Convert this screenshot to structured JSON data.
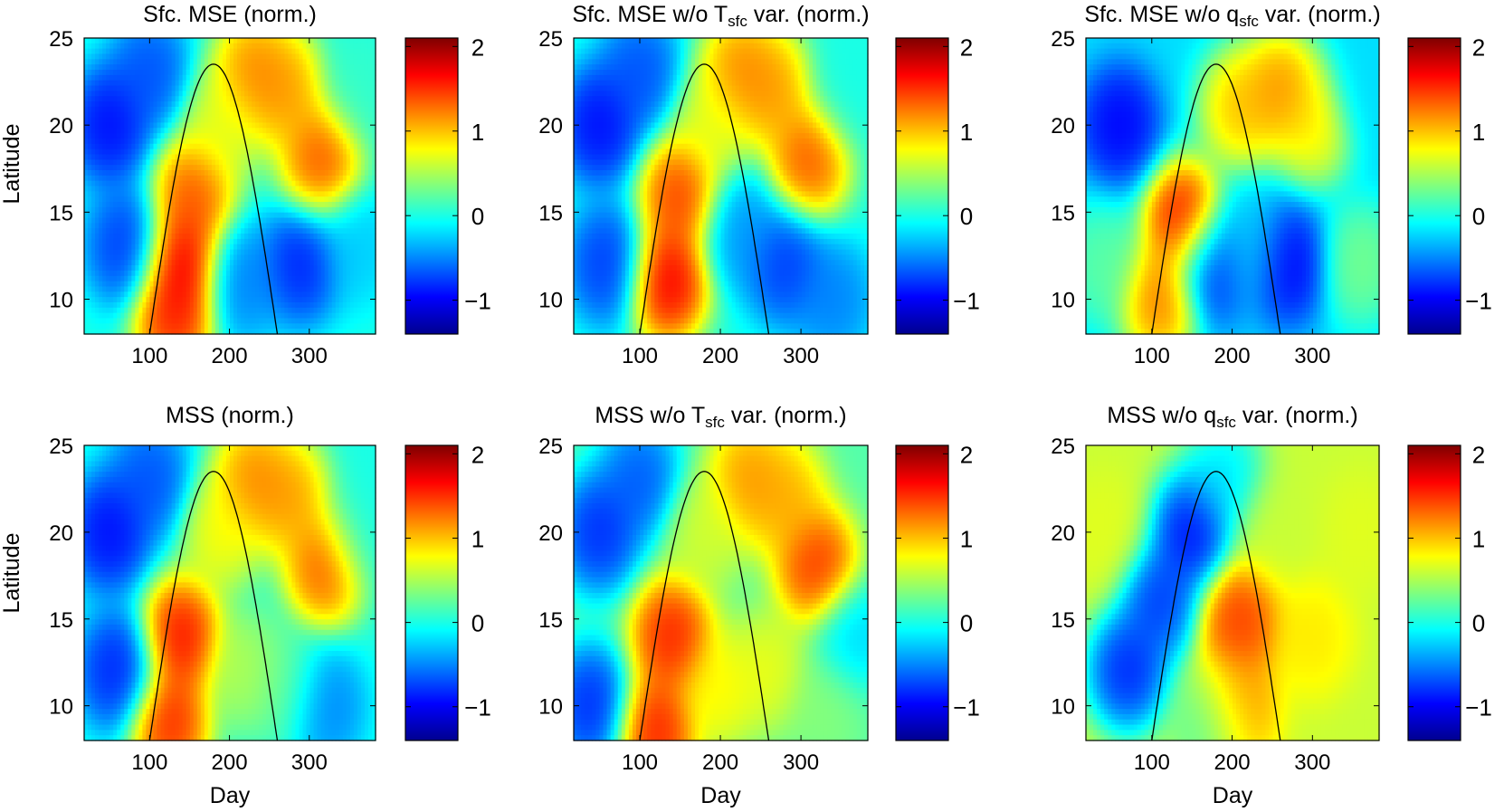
{
  "figure": {
    "y_axis_label": "Latitude",
    "x_axis_label": "Day"
  },
  "chart_data": [
    {
      "type": "heatmap",
      "title": "Sfc. MSE (norm.)",
      "title_parts": [
        "Sfc. MSE (norm.)"
      ],
      "xlabel": "",
      "ylabel": "Latitude",
      "x_ticks": [
        "100",
        "200",
        "300"
      ],
      "y_ticks": [
        "10",
        "15",
        "20",
        "25"
      ],
      "xlim": [
        18,
        383
      ],
      "ylim": [
        8,
        25
      ],
      "colorbar": {
        "ticks": [
          "2",
          "1",
          "0",
          "−1"
        ],
        "range": [
          -1.4,
          2.1
        ],
        "colormap": "jet"
      },
      "background_value": 0.0,
      "features": [
        {
          "day": 50,
          "lat": 20,
          "value": -1.1
        },
        {
          "day": 70,
          "lat": 13,
          "value": -0.9
        },
        {
          "day": 100,
          "lat": 23,
          "value": -0.8
        },
        {
          "day": 140,
          "lat": 12,
          "value": 2.0
        },
        {
          "day": 130,
          "lat": 9,
          "value": 1.8
        },
        {
          "day": 155,
          "lat": 16,
          "value": 1.6
        },
        {
          "day": 190,
          "lat": 20,
          "value": 0.8
        },
        {
          "day": 230,
          "lat": 23,
          "value": 1.4
        },
        {
          "day": 270,
          "lat": 22,
          "value": 1.3
        },
        {
          "day": 315,
          "lat": 18,
          "value": 1.6
        },
        {
          "day": 215,
          "lat": 11,
          "value": -0.6
        },
        {
          "day": 290,
          "lat": 12,
          "value": -1.0
        },
        {
          "day": 360,
          "lat": 13,
          "value": -0.3
        },
        {
          "day": 365,
          "lat": 22,
          "value": 0.1
        }
      ],
      "curve": {
        "start_day": 100,
        "end_day": 260,
        "peak_day": 180,
        "peak_lat": 23.5,
        "base_lat": 8
      }
    },
    {
      "type": "heatmap",
      "title": "Sfc. MSE w/o Tsfc var. (norm.)",
      "title_parts": [
        "Sfc. MSE w/o T",
        "sfc",
        " var. (norm.)"
      ],
      "xlabel": "",
      "ylabel": "",
      "x_ticks": [
        "100",
        "200",
        "300"
      ],
      "y_ticks": [
        "10",
        "15",
        "20",
        "25"
      ],
      "xlim": [
        18,
        383
      ],
      "ylim": [
        8,
        25
      ],
      "colorbar": {
        "ticks": [
          "2",
          "1",
          "0",
          "−1"
        ],
        "range": [
          -1.4,
          2.1
        ],
        "colormap": "jet"
      },
      "background_value": 0.0,
      "features": [
        {
          "day": 50,
          "lat": 20,
          "value": -1.1
        },
        {
          "day": 60,
          "lat": 12,
          "value": -0.9
        },
        {
          "day": 100,
          "lat": 23,
          "value": -0.8
        },
        {
          "day": 135,
          "lat": 11,
          "value": 2.0
        },
        {
          "day": 150,
          "lat": 16,
          "value": 1.7
        },
        {
          "day": 190,
          "lat": 20,
          "value": 0.8
        },
        {
          "day": 225,
          "lat": 23,
          "value": 1.4
        },
        {
          "day": 265,
          "lat": 22,
          "value": 1.3
        },
        {
          "day": 310,
          "lat": 18,
          "value": 1.6
        },
        {
          "day": 225,
          "lat": 14,
          "value": -0.5
        },
        {
          "day": 280,
          "lat": 12,
          "value": -0.9
        },
        {
          "day": 340,
          "lat": 10,
          "value": -0.6
        },
        {
          "day": 360,
          "lat": 22,
          "value": 0.0
        }
      ],
      "curve": {
        "start_day": 100,
        "end_day": 260,
        "peak_day": 180,
        "peak_lat": 23.5,
        "base_lat": 8
      }
    },
    {
      "type": "heatmap",
      "title": "Sfc. MSE w/o qsfc var. (norm.)",
      "title_parts": [
        "Sfc. MSE w/o q",
        "sfc",
        " var. (norm.)"
      ],
      "xlabel": "",
      "ylabel": "",
      "x_ticks": [
        "100",
        "200",
        "300"
      ],
      "y_ticks": [
        "10",
        "15",
        "20",
        "25"
      ],
      "xlim": [
        18,
        383
      ],
      "ylim": [
        8,
        25
      ],
      "colorbar": {
        "ticks": [
          "2",
          "1",
          "0",
          "−1"
        ],
        "range": [
          -1.4,
          2.1
        ],
        "colormap": "jet"
      },
      "background_value": -0.2,
      "features": [
        {
          "day": 60,
          "lat": 20,
          "value": -1.1
        },
        {
          "day": 40,
          "lat": 12,
          "value": 0.3
        },
        {
          "day": 110,
          "lat": 10,
          "value": 1.5
        },
        {
          "day": 140,
          "lat": 14.5,
          "value": 2.0
        },
        {
          "day": 175,
          "lat": 12,
          "value": -1.0
        },
        {
          "day": 210,
          "lat": 21,
          "value": 1.2
        },
        {
          "day": 260,
          "lat": 22,
          "value": 1.4
        },
        {
          "day": 300,
          "lat": 20,
          "value": 1.0
        },
        {
          "day": 270,
          "lat": 12,
          "value": -1.1
        },
        {
          "day": 220,
          "lat": 13,
          "value": -0.2
        },
        {
          "day": 360,
          "lat": 12,
          "value": 0.4
        },
        {
          "day": 370,
          "lat": 22,
          "value": -0.2
        }
      ],
      "curve": {
        "start_day": 100,
        "end_day": 260,
        "peak_day": 180,
        "peak_lat": 23.5,
        "base_lat": 8
      }
    },
    {
      "type": "heatmap",
      "title": "MSS (norm.)",
      "title_parts": [
        "MSS (norm.)"
      ],
      "xlabel": "Day",
      "ylabel": "Latitude",
      "x_ticks": [
        "100",
        "200",
        "300"
      ],
      "y_ticks": [
        "10",
        "15",
        "20",
        "25"
      ],
      "xlim": [
        18,
        383
      ],
      "ylim": [
        8,
        25
      ],
      "colorbar": {
        "ticks": [
          "2",
          "1",
          "0",
          "−1"
        ],
        "range": [
          -1.4,
          2.1
        ],
        "colormap": "jet"
      },
      "background_value": 0.0,
      "features": [
        {
          "day": 50,
          "lat": 20,
          "value": -1.1
        },
        {
          "day": 60,
          "lat": 12,
          "value": -1.0
        },
        {
          "day": 100,
          "lat": 23,
          "value": -0.8
        },
        {
          "day": 140,
          "lat": 14,
          "value": 1.9
        },
        {
          "day": 125,
          "lat": 9,
          "value": 1.8
        },
        {
          "day": 190,
          "lat": 20,
          "value": 0.9
        },
        {
          "day": 230,
          "lat": 23,
          "value": 1.4
        },
        {
          "day": 275,
          "lat": 22,
          "value": 1.3
        },
        {
          "day": 320,
          "lat": 18,
          "value": 1.6
        },
        {
          "day": 220,
          "lat": 12,
          "value": 0.6
        },
        {
          "day": 270,
          "lat": 11,
          "value": 0.3
        },
        {
          "day": 320,
          "lat": 10,
          "value": -0.6
        },
        {
          "day": 365,
          "lat": 20,
          "value": 0.0
        }
      ],
      "curve": {
        "start_day": 100,
        "end_day": 260,
        "peak_day": 180,
        "peak_lat": 23.5,
        "base_lat": 8
      }
    },
    {
      "type": "heatmap",
      "title": "MSS w/o Tsfc var. (norm.)",
      "title_parts": [
        "MSS w/o T",
        "sfc",
        " var. (norm.)"
      ],
      "xlabel": "Day",
      "ylabel": "",
      "x_ticks": [
        "100",
        "200",
        "300"
      ],
      "y_ticks": [
        "10",
        "15",
        "20",
        "25"
      ],
      "xlim": [
        18,
        383
      ],
      "ylim": [
        8,
        25
      ],
      "colorbar": {
        "ticks": [
          "2",
          "1",
          "0",
          "−1"
        ],
        "range": [
          -1.4,
          2.1
        ],
        "colormap": "jet"
      },
      "background_value": 0.2,
      "features": [
        {
          "day": 50,
          "lat": 20,
          "value": -1.0
        },
        {
          "day": 40,
          "lat": 10,
          "value": -1.0
        },
        {
          "day": 100,
          "lat": 23,
          "value": -0.8
        },
        {
          "day": 140,
          "lat": 14,
          "value": 1.8
        },
        {
          "day": 120,
          "lat": 8.5,
          "value": 1.8
        },
        {
          "day": 200,
          "lat": 11,
          "value": 0.9
        },
        {
          "day": 260,
          "lat": 12,
          "value": 0.8
        },
        {
          "day": 235,
          "lat": 23,
          "value": 1.3
        },
        {
          "day": 280,
          "lat": 22,
          "value": 1.2
        },
        {
          "day": 320,
          "lat": 18,
          "value": 1.7
        },
        {
          "day": 180,
          "lat": 20,
          "value": 0.7
        },
        {
          "day": 330,
          "lat": 10,
          "value": 0.4
        },
        {
          "day": 365,
          "lat": 14,
          "value": -0.3
        }
      ],
      "curve": {
        "start_day": 100,
        "end_day": 260,
        "peak_day": 180,
        "peak_lat": 23.5,
        "base_lat": 8
      }
    },
    {
      "type": "heatmap",
      "title": "MSS w/o qsfc var. (norm.)",
      "title_parts": [
        "MSS w/o q",
        "sfc",
        " var. (norm.)"
      ],
      "xlabel": "Day",
      "ylabel": "",
      "x_ticks": [
        "100",
        "200",
        "300"
      ],
      "y_ticks": [
        "10",
        "15",
        "20",
        "25"
      ],
      "xlim": [
        18,
        383
      ],
      "ylim": [
        8,
        25
      ],
      "colorbar": {
        "ticks": [
          "2",
          "1",
          "0",
          "−1"
        ],
        "range": [
          -1.4,
          2.1
        ],
        "colormap": "jet"
      },
      "background_value": 0.6,
      "features": [
        {
          "day": 40,
          "lat": 20,
          "value": 0.7
        },
        {
          "day": 70,
          "lat": 12,
          "value": -1.1
        },
        {
          "day": 150,
          "lat": 20,
          "value": -1.2
        },
        {
          "day": 110,
          "lat": 16,
          "value": -1.0
        },
        {
          "day": 190,
          "lat": 23,
          "value": -0.3
        },
        {
          "day": 210,
          "lat": 15,
          "value": 1.6
        },
        {
          "day": 205,
          "lat": 10,
          "value": 1.3
        },
        {
          "day": 250,
          "lat": 20,
          "value": 0.6
        },
        {
          "day": 300,
          "lat": 14,
          "value": 0.9
        },
        {
          "day": 360,
          "lat": 20,
          "value": 0.7
        },
        {
          "day": 175,
          "lat": 9,
          "value": 0.1
        }
      ],
      "curve": {
        "start_day": 100,
        "end_day": 260,
        "peak_day": 180,
        "peak_lat": 23.5,
        "base_lat": 8
      }
    }
  ]
}
